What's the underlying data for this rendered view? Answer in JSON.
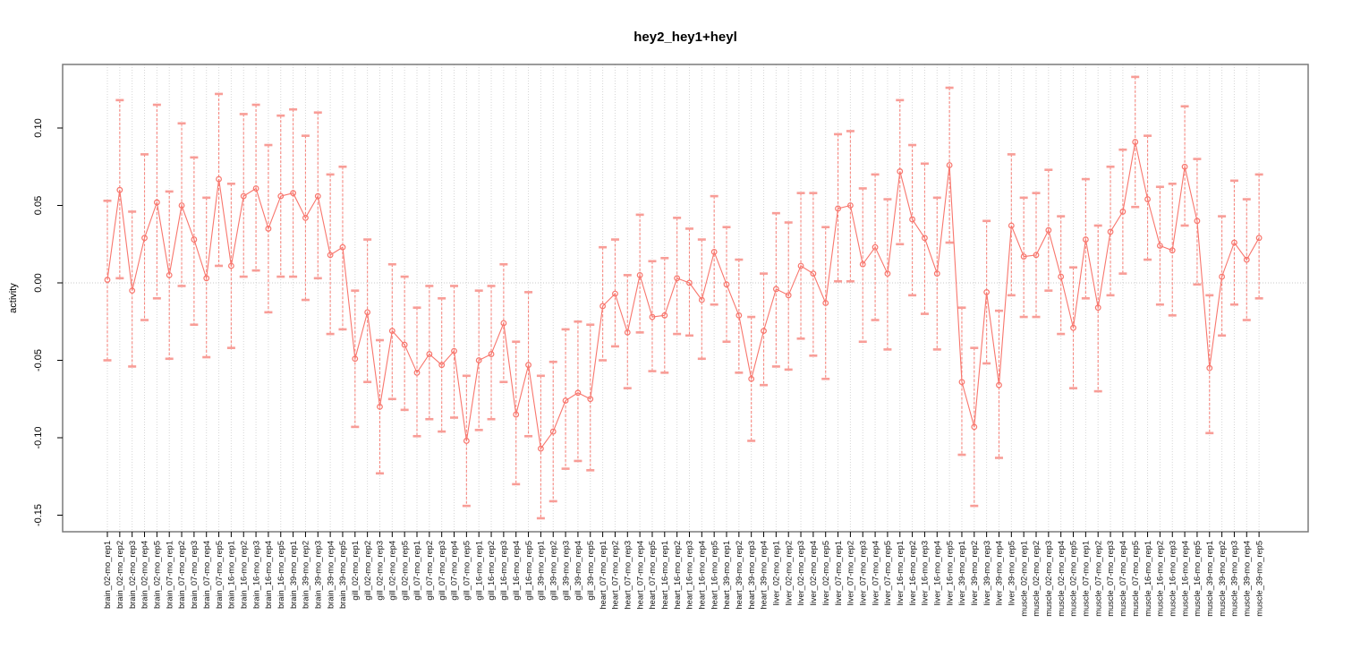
{
  "title": "hey2_hey1+heyl",
  "chart_data": {
    "type": "line",
    "title": "hey2_hey1+heyl",
    "xlabel": "",
    "ylabel": "activity",
    "ylim": [
      -0.16,
      0.135
    ],
    "yticks": [
      0.1,
      0.05,
      0.0,
      -0.05,
      -0.1,
      -0.15
    ],
    "grid": "vertical dotted gridline at every sample; horizontal dotted line at y=0",
    "legend": "none",
    "series_color": "#f8766d",
    "errorbar_cap_color": "#f89d97",
    "marker": "open-circle",
    "samples": [
      {
        "label": "brain_02-mo_rep1",
        "value": 0.002,
        "lo": -0.05,
        "hi": 0.053
      },
      {
        "label": "brain_02-mo_rep2",
        "value": 0.06,
        "lo": 0.003,
        "hi": 0.118
      },
      {
        "label": "brain_02-mo_rep3",
        "value": -0.005,
        "lo": -0.054,
        "hi": 0.046
      },
      {
        "label": "brain_02-mo_rep4",
        "value": 0.029,
        "lo": -0.024,
        "hi": 0.083
      },
      {
        "label": "brain_02-mo_rep5",
        "value": 0.052,
        "lo": -0.01,
        "hi": 0.115
      },
      {
        "label": "brain_07-mo_rep1",
        "value": 0.005,
        "lo": -0.049,
        "hi": 0.059
      },
      {
        "label": "brain_07-mo_rep2",
        "value": 0.05,
        "lo": -0.002,
        "hi": 0.103
      },
      {
        "label": "brain_07-mo_rep3",
        "value": 0.028,
        "lo": -0.027,
        "hi": 0.081
      },
      {
        "label": "brain_07-mo_rep4",
        "value": 0.003,
        "lo": -0.048,
        "hi": 0.055
      },
      {
        "label": "brain_07-mo_rep5",
        "value": 0.067,
        "lo": 0.011,
        "hi": 0.122
      },
      {
        "label": "brain_16-mo_rep1",
        "value": 0.011,
        "lo": -0.042,
        "hi": 0.064
      },
      {
        "label": "brain_16-mo_rep2",
        "value": 0.056,
        "lo": 0.004,
        "hi": 0.109
      },
      {
        "label": "brain_16-mo_rep3",
        "value": 0.061,
        "lo": 0.008,
        "hi": 0.115
      },
      {
        "label": "brain_16-mo_rep4",
        "value": 0.035,
        "lo": -0.019,
        "hi": 0.089
      },
      {
        "label": "brain_16-mo_rep5",
        "value": 0.056,
        "lo": 0.004,
        "hi": 0.108
      },
      {
        "label": "brain_39-mo_rep1",
        "value": 0.058,
        "lo": 0.004,
        "hi": 0.112
      },
      {
        "label": "brain_39-mo_rep2",
        "value": 0.042,
        "lo": -0.011,
        "hi": 0.095
      },
      {
        "label": "brain_39-mo_rep3",
        "value": 0.056,
        "lo": 0.003,
        "hi": 0.11
      },
      {
        "label": "brain_39-mo_rep4",
        "value": 0.018,
        "lo": -0.033,
        "hi": 0.07
      },
      {
        "label": "brain_39-mo_rep5",
        "value": 0.023,
        "lo": -0.03,
        "hi": 0.075
      },
      {
        "label": "gill_02-mo_rep1",
        "value": -0.049,
        "lo": -0.093,
        "hi": -0.005
      },
      {
        "label": "gill_02-mo_rep2",
        "value": -0.019,
        "lo": -0.064,
        "hi": 0.028
      },
      {
        "label": "gill_02-mo_rep3",
        "value": -0.08,
        "lo": -0.123,
        "hi": -0.037
      },
      {
        "label": "gill_02-mo_rep4",
        "value": -0.031,
        "lo": -0.075,
        "hi": 0.012
      },
      {
        "label": "gill_02-mo_rep5",
        "value": -0.04,
        "lo": -0.082,
        "hi": 0.004
      },
      {
        "label": "gill_07-mo_rep1",
        "value": -0.058,
        "lo": -0.099,
        "hi": -0.016
      },
      {
        "label": "gill_07-mo_rep2",
        "value": -0.046,
        "lo": -0.088,
        "hi": -0.002
      },
      {
        "label": "gill_07-mo_rep3",
        "value": -0.053,
        "lo": -0.096,
        "hi": -0.01
      },
      {
        "label": "gill_07-mo_rep4",
        "value": -0.044,
        "lo": -0.087,
        "hi": -0.002
      },
      {
        "label": "gill_07-mo_rep5",
        "value": -0.102,
        "lo": -0.144,
        "hi": -0.06
      },
      {
        "label": "gill_16-mo_rep1",
        "value": -0.05,
        "lo": -0.095,
        "hi": -0.005
      },
      {
        "label": "gill_16-mo_rep2",
        "value": -0.046,
        "lo": -0.088,
        "hi": -0.002
      },
      {
        "label": "gill_16-mo_rep3",
        "value": -0.026,
        "lo": -0.064,
        "hi": 0.012
      },
      {
        "label": "gill_16-mo_rep4",
        "value": -0.085,
        "lo": -0.13,
        "hi": -0.038
      },
      {
        "label": "gill_16-mo_rep5",
        "value": -0.053,
        "lo": -0.099,
        "hi": -0.006
      },
      {
        "label": "gill_39-mo_rep1",
        "value": -0.107,
        "lo": -0.152,
        "hi": -0.06
      },
      {
        "label": "gill_39-mo_rep2",
        "value": -0.096,
        "lo": -0.141,
        "hi": -0.051
      },
      {
        "label": "gill_39-mo_rep3",
        "value": -0.076,
        "lo": -0.12,
        "hi": -0.03
      },
      {
        "label": "gill_39-mo_rep4",
        "value": -0.071,
        "lo": -0.115,
        "hi": -0.025
      },
      {
        "label": "gill_39-mo_rep5",
        "value": -0.075,
        "lo": -0.121,
        "hi": -0.027
      },
      {
        "label": "heart_07-mo_rep1",
        "value": -0.015,
        "lo": -0.05,
        "hi": 0.023
      },
      {
        "label": "heart_07-mo_rep2",
        "value": -0.007,
        "lo": -0.041,
        "hi": 0.028
      },
      {
        "label": "heart_07-mo_rep3",
        "value": -0.032,
        "lo": -0.068,
        "hi": 0.005
      },
      {
        "label": "heart_07-mo_rep4",
        "value": 0.005,
        "lo": -0.032,
        "hi": 0.044
      },
      {
        "label": "heart_07-mo_rep5",
        "value": -0.022,
        "lo": -0.057,
        "hi": 0.014
      },
      {
        "label": "heart_16-mo_rep1",
        "value": -0.021,
        "lo": -0.058,
        "hi": 0.016
      },
      {
        "label": "heart_16-mo_rep2",
        "value": 0.003,
        "lo": -0.033,
        "hi": 0.042
      },
      {
        "label": "heart_16-mo_rep3",
        "value": 0.0,
        "lo": -0.034,
        "hi": 0.035
      },
      {
        "label": "heart_16-mo_rep4",
        "value": -0.011,
        "lo": -0.049,
        "hi": 0.028
      },
      {
        "label": "heart_16-mo_rep5",
        "value": 0.02,
        "lo": -0.014,
        "hi": 0.056
      },
      {
        "label": "heart_39-mo_rep1",
        "value": -0.001,
        "lo": -0.038,
        "hi": 0.036
      },
      {
        "label": "heart_39-mo_rep2",
        "value": -0.021,
        "lo": -0.058,
        "hi": 0.015
      },
      {
        "label": "heart_39-mo_rep3",
        "value": -0.062,
        "lo": -0.102,
        "hi": -0.022
      },
      {
        "label": "heart_39-mo_rep4",
        "value": -0.031,
        "lo": -0.066,
        "hi": 0.006
      },
      {
        "label": "liver_02-mo_rep1",
        "value": -0.004,
        "lo": -0.054,
        "hi": 0.045
      },
      {
        "label": "liver_02-mo_rep2",
        "value": -0.008,
        "lo": -0.056,
        "hi": 0.039
      },
      {
        "label": "liver_02-mo_rep3",
        "value": 0.011,
        "lo": -0.036,
        "hi": 0.058
      },
      {
        "label": "liver_02-mo_rep4",
        "value": 0.006,
        "lo": -0.047,
        "hi": 0.058
      },
      {
        "label": "liver_02-mo_rep5",
        "value": -0.013,
        "lo": -0.062,
        "hi": 0.036
      },
      {
        "label": "liver_07-mo_rep1",
        "value": 0.048,
        "lo": 0.001,
        "hi": 0.096
      },
      {
        "label": "liver_07-mo_rep2",
        "value": 0.05,
        "lo": 0.001,
        "hi": 0.098
      },
      {
        "label": "liver_07-mo_rep3",
        "value": 0.012,
        "lo": -0.038,
        "hi": 0.061
      },
      {
        "label": "liver_07-mo_rep4",
        "value": 0.023,
        "lo": -0.024,
        "hi": 0.07
      },
      {
        "label": "liver_07-mo_rep5",
        "value": 0.006,
        "lo": -0.043,
        "hi": 0.054
      },
      {
        "label": "liver_16-mo_rep1",
        "value": 0.072,
        "lo": 0.025,
        "hi": 0.118
      },
      {
        "label": "liver_16-mo_rep2",
        "value": 0.041,
        "lo": -0.008,
        "hi": 0.089
      },
      {
        "label": "liver_16-mo_rep3",
        "value": 0.029,
        "lo": -0.02,
        "hi": 0.077
      },
      {
        "label": "liver_16-mo_rep4",
        "value": 0.006,
        "lo": -0.043,
        "hi": 0.055
      },
      {
        "label": "liver_16-mo_rep5",
        "value": 0.076,
        "lo": 0.026,
        "hi": 0.126
      },
      {
        "label": "liver_39-mo_rep1",
        "value": -0.064,
        "lo": -0.111,
        "hi": -0.016
      },
      {
        "label": "liver_39-mo_rep2",
        "value": -0.093,
        "lo": -0.144,
        "hi": -0.042
      },
      {
        "label": "liver_39-mo_rep3",
        "value": -0.006,
        "lo": -0.052,
        "hi": 0.04
      },
      {
        "label": "liver_39-mo_rep4",
        "value": -0.066,
        "lo": -0.113,
        "hi": -0.018
      },
      {
        "label": "liver_39-mo_rep5",
        "value": 0.037,
        "lo": -0.008,
        "hi": 0.083
      },
      {
        "label": "muscle_02-mo_rep1",
        "value": 0.017,
        "lo": -0.022,
        "hi": 0.055
      },
      {
        "label": "muscle_02-mo_rep2",
        "value": 0.018,
        "lo": -0.022,
        "hi": 0.058
      },
      {
        "label": "muscle_02-mo_rep3",
        "value": 0.034,
        "lo": -0.005,
        "hi": 0.073
      },
      {
        "label": "muscle_02-mo_rep4",
        "value": 0.004,
        "lo": -0.033,
        "hi": 0.043
      },
      {
        "label": "muscle_02-mo_rep5",
        "value": -0.029,
        "lo": -0.068,
        "hi": 0.01
      },
      {
        "label": "muscle_07-mo_rep1",
        "value": 0.028,
        "lo": -0.01,
        "hi": 0.067
      },
      {
        "label": "muscle_07-mo_rep2",
        "value": -0.016,
        "lo": -0.07,
        "hi": 0.037
      },
      {
        "label": "muscle_07-mo_rep3",
        "value": 0.033,
        "lo": -0.008,
        "hi": 0.075
      },
      {
        "label": "muscle_07-mo_rep4",
        "value": 0.046,
        "lo": 0.006,
        "hi": 0.086
      },
      {
        "label": "muscle_07-mo_rep5",
        "value": 0.091,
        "lo": 0.049,
        "hi": 0.133
      },
      {
        "label": "muscle_16-mo_rep1",
        "value": 0.054,
        "lo": 0.015,
        "hi": 0.095
      },
      {
        "label": "muscle_16-mo_rep2",
        "value": 0.024,
        "lo": -0.014,
        "hi": 0.062
      },
      {
        "label": "muscle_16-mo_rep3",
        "value": 0.021,
        "lo": -0.021,
        "hi": 0.064
      },
      {
        "label": "muscle_16-mo_rep4",
        "value": 0.075,
        "lo": 0.037,
        "hi": 0.114
      },
      {
        "label": "muscle_16-mo_rep5",
        "value": 0.04,
        "lo": -0.001,
        "hi": 0.08
      },
      {
        "label": "muscle_39-mo_rep1",
        "value": -0.055,
        "lo": -0.097,
        "hi": -0.008
      },
      {
        "label": "muscle_39-mo_rep2",
        "value": 0.004,
        "lo": -0.034,
        "hi": 0.043
      },
      {
        "label": "muscle_39-mo_rep3",
        "value": 0.026,
        "lo": -0.014,
        "hi": 0.066
      },
      {
        "label": "muscle_39-mo_rep4",
        "value": 0.015,
        "lo": -0.024,
        "hi": 0.054
      },
      {
        "label": "muscle_39-mo_rep5",
        "value": 0.029,
        "lo": -0.01,
        "hi": 0.07
      }
    ]
  }
}
